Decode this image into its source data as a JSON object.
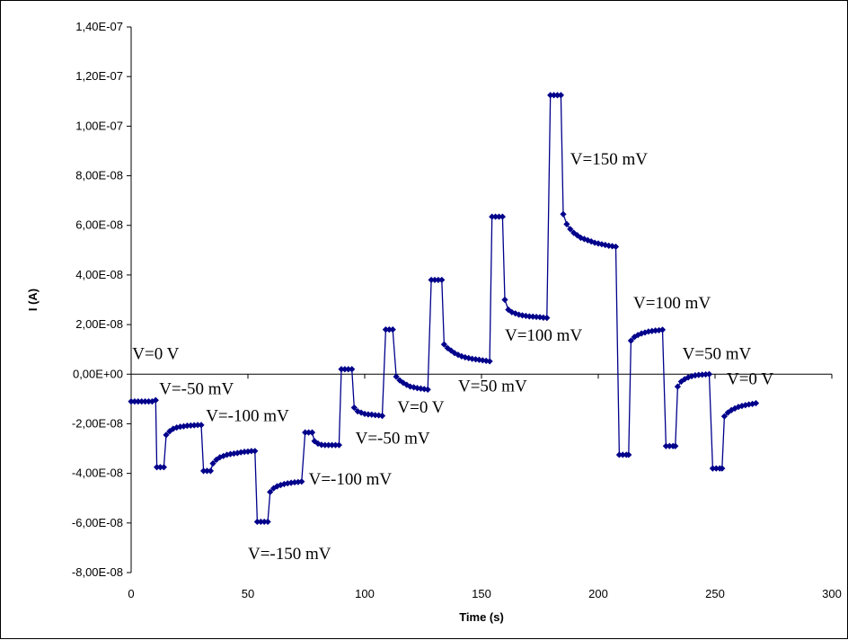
{
  "chart_data": {
    "type": "line",
    "xlabel": "Time (s)",
    "ylabel": "I (A)",
    "xlim": [
      0,
      300
    ],
    "ylim": [
      -8e-08,
      1.4e-07
    ],
    "x_ticks": [
      0,
      50,
      100,
      150,
      200,
      250,
      300
    ],
    "x_tick_labels": [
      "0",
      "50",
      "100",
      "150",
      "200",
      "250",
      "300"
    ],
    "y_ticks": [
      -8e-08,
      -6e-08,
      -4e-08,
      -2e-08,
      0,
      2e-08,
      4e-08,
      6e-08,
      8e-08,
      1e-07,
      1.2e-07,
      1.4e-07
    ],
    "y_tick_labels": [
      "-8,00E-08",
      "-6,00E-08",
      "-4,00E-08",
      "-2,00E-08",
      "0,00E+00",
      "2,00E-08",
      "4,00E-08",
      "6,00E-08",
      "8,00E-08",
      "1,00E-07",
      "1,20E-07",
      "1,40E-07"
    ],
    "grid": false,
    "series_color": "#00008B",
    "marker": "diamond",
    "points": [
      [
        0,
        -1.1e-08
      ],
      [
        1.5,
        -1.1e-08
      ],
      [
        3,
        -1.1e-08
      ],
      [
        4.5,
        -1.1e-08
      ],
      [
        6,
        -1.1e-08
      ],
      [
        7.5,
        -1.1e-08
      ],
      [
        9,
        -1.1e-08
      ],
      [
        10.5,
        -1.05e-08
      ],
      [
        11,
        -3.75e-08
      ],
      [
        12.5,
        -3.75e-08
      ],
      [
        14,
        -3.75e-08
      ],
      [
        15,
        -2.45e-08
      ],
      [
        16.5,
        -2.3e-08
      ],
      [
        18,
        -2.2e-08
      ],
      [
        19.5,
        -2.15e-08
      ],
      [
        21,
        -2.12e-08
      ],
      [
        22.5,
        -2.1e-08
      ],
      [
        24,
        -2.08e-08
      ],
      [
        25.5,
        -2.07e-08
      ],
      [
        27,
        -2.06e-08
      ],
      [
        28.5,
        -2.05e-08
      ],
      [
        30,
        -2.05e-08
      ],
      [
        31,
        -3.9e-08
      ],
      [
        32.5,
        -3.9e-08
      ],
      [
        34,
        -3.9e-08
      ],
      [
        35,
        -3.6e-08
      ],
      [
        36.5,
        -3.45e-08
      ],
      [
        38,
        -3.35e-08
      ],
      [
        39.5,
        -3.3e-08
      ],
      [
        41,
        -3.25e-08
      ],
      [
        42.5,
        -3.22e-08
      ],
      [
        44,
        -3.2e-08
      ],
      [
        45.5,
        -3.18e-08
      ],
      [
        47,
        -3.15e-08
      ],
      [
        48.5,
        -3.13e-08
      ],
      [
        50,
        -3.12e-08
      ],
      [
        51.5,
        -3.1e-08
      ],
      [
        53,
        -3.1e-08
      ],
      [
        54,
        -5.95e-08
      ],
      [
        55.5,
        -5.95e-08
      ],
      [
        57,
        -5.95e-08
      ],
      [
        58.5,
        -5.95e-08
      ],
      [
        59.5,
        -4.75e-08
      ],
      [
        61,
        -4.6e-08
      ],
      [
        62.5,
        -4.52e-08
      ],
      [
        64,
        -4.47e-08
      ],
      [
        65.5,
        -4.43e-08
      ],
      [
        67,
        -4.4e-08
      ],
      [
        68.5,
        -4.38e-08
      ],
      [
        70,
        -4.36e-08
      ],
      [
        71.5,
        -4.35e-08
      ],
      [
        73,
        -4.33e-08
      ],
      [
        74.5,
        -2.35e-08
      ],
      [
        76,
        -2.35e-08
      ],
      [
        77.5,
        -2.35e-08
      ],
      [
        78.5,
        -2.7e-08
      ],
      [
        80,
        -2.8e-08
      ],
      [
        81.5,
        -2.85e-08
      ],
      [
        83,
        -2.86e-08
      ],
      [
        84.5,
        -2.86e-08
      ],
      [
        86,
        -2.86e-08
      ],
      [
        87.5,
        -2.86e-08
      ],
      [
        89,
        -2.86e-08
      ],
      [
        90,
        2e-09
      ],
      [
        91.5,
        2e-09
      ],
      [
        93,
        2e-09
      ],
      [
        94.5,
        2e-09
      ],
      [
        95.5,
        -1.35e-08
      ],
      [
        97,
        -1.5e-08
      ],
      [
        98.5,
        -1.55e-08
      ],
      [
        100,
        -1.6e-08
      ],
      [
        101.5,
        -1.62e-08
      ],
      [
        103,
        -1.63e-08
      ],
      [
        104.5,
        -1.65e-08
      ],
      [
        106,
        -1.66e-08
      ],
      [
        107.5,
        -1.68e-08
      ],
      [
        109,
        1.8e-08
      ],
      [
        110.5,
        1.8e-08
      ],
      [
        112,
        1.8e-08
      ],
      [
        113.5,
        -1e-09
      ],
      [
        115,
        -2.5e-09
      ],
      [
        116.5,
        -3.5e-09
      ],
      [
        118,
        -4.3e-09
      ],
      [
        119.5,
        -5e-09
      ],
      [
        121,
        -5.3e-09
      ],
      [
        122.5,
        -5.6e-09
      ],
      [
        124,
        -5.8e-09
      ],
      [
        125.5,
        -6e-09
      ],
      [
        127,
        -6.2e-09
      ],
      [
        128.5,
        3.8e-08
      ],
      [
        130,
        3.8e-08
      ],
      [
        131.5,
        3.8e-08
      ],
      [
        133,
        3.8e-08
      ],
      [
        134,
        1.2e-08
      ],
      [
        135.5,
        1.05e-08
      ],
      [
        137,
        9.5e-09
      ],
      [
        138.5,
        8.5e-09
      ],
      [
        140,
        7.8e-09
      ],
      [
        141.5,
        7.2e-09
      ],
      [
        143,
        6.8e-09
      ],
      [
        144.5,
        6.5e-09
      ],
      [
        146,
        6.2e-09
      ],
      [
        147.5,
        6e-09
      ],
      [
        149,
        5.8e-09
      ],
      [
        150.5,
        5.6e-09
      ],
      [
        152,
        5.4e-09
      ],
      [
        153.5,
        5.2e-09
      ],
      [
        154.5,
        6.35e-08
      ],
      [
        156,
        6.35e-08
      ],
      [
        157.5,
        6.35e-08
      ],
      [
        159,
        6.35e-08
      ],
      [
        160,
        3e-08
      ],
      [
        161.5,
        2.6e-08
      ],
      [
        163,
        2.5e-08
      ],
      [
        164.5,
        2.45e-08
      ],
      [
        166,
        2.4e-08
      ],
      [
        167.5,
        2.37e-08
      ],
      [
        169,
        2.35e-08
      ],
      [
        170.5,
        2.33e-08
      ],
      [
        172,
        2.32e-08
      ],
      [
        173.5,
        2.31e-08
      ],
      [
        175,
        2.3e-08
      ],
      [
        176.5,
        2.28e-08
      ],
      [
        178,
        2.27e-08
      ],
      [
        179.5,
        1.125e-07
      ],
      [
        181,
        1.125e-07
      ],
      [
        182.5,
        1.125e-07
      ],
      [
        184,
        1.125e-07
      ],
      [
        185,
        6.45e-08
      ],
      [
        186.5,
        6.05e-08
      ],
      [
        188,
        5.85e-08
      ],
      [
        189.5,
        5.7e-08
      ],
      [
        191,
        5.6e-08
      ],
      [
        192.5,
        5.5e-08
      ],
      [
        194,
        5.45e-08
      ],
      [
        195.5,
        5.4e-08
      ],
      [
        197,
        5.35e-08
      ],
      [
        198.5,
        5.3e-08
      ],
      [
        200,
        5.27e-08
      ],
      [
        201.5,
        5.24e-08
      ],
      [
        203,
        5.21e-08
      ],
      [
        204.5,
        5.18e-08
      ],
      [
        206,
        5.16e-08
      ],
      [
        207.5,
        5.14e-08
      ],
      [
        209,
        -3.25e-08
      ],
      [
        210.5,
        -3.25e-08
      ],
      [
        212,
        -3.25e-08
      ],
      [
        213,
        -3.25e-08
      ],
      [
        214,
        1.35e-08
      ],
      [
        215.5,
        1.5e-08
      ],
      [
        217,
        1.58e-08
      ],
      [
        218.5,
        1.64e-08
      ],
      [
        220,
        1.68e-08
      ],
      [
        221.5,
        1.72e-08
      ],
      [
        223,
        1.74e-08
      ],
      [
        224.5,
        1.76e-08
      ],
      [
        226,
        1.77e-08
      ],
      [
        227.5,
        1.79e-08
      ],
      [
        229,
        -2.9e-08
      ],
      [
        230.5,
        -2.9e-08
      ],
      [
        232,
        -2.9e-08
      ],
      [
        233,
        -2.9e-08
      ],
      [
        234,
        -5e-09
      ],
      [
        235.5,
        -3e-09
      ],
      [
        237,
        -2e-09
      ],
      [
        238.5,
        -1.3e-09
      ],
      [
        240,
        -8e-10
      ],
      [
        241.5,
        -5e-10
      ],
      [
        243,
        -3e-10
      ],
      [
        244.5,
        -2e-10
      ],
      [
        246,
        -1e-10
      ],
      [
        247.5,
        0
      ],
      [
        249,
        -3.8e-08
      ],
      [
        250.5,
        -3.8e-08
      ],
      [
        252,
        -3.8e-08
      ],
      [
        253,
        -3.8e-08
      ],
      [
        254,
        -1.7e-08
      ],
      [
        255.5,
        -1.55e-08
      ],
      [
        257,
        -1.45e-08
      ],
      [
        258.5,
        -1.38e-08
      ],
      [
        260,
        -1.32e-08
      ],
      [
        261.5,
        -1.28e-08
      ],
      [
        263,
        -1.25e-08
      ],
      [
        264.5,
        -1.22e-08
      ],
      [
        266,
        -1.2e-08
      ],
      [
        267.5,
        -1.17e-08
      ]
    ],
    "annotations": [
      {
        "text": "V=0 V",
        "x": 0.5,
        "y": 6e-09
      },
      {
        "text": "V=-50 mV",
        "x": 12,
        "y": -8e-09
      },
      {
        "text": "V=-100 mV",
        "x": 32,
        "y": -1.9e-08
      },
      {
        "text": "V=-150 mV",
        "x": 50,
        "y": -7.45e-08
      },
      {
        "text": "V=-100 mV",
        "x": 76,
        "y": -4.45e-08
      },
      {
        "text": "V=-50 mV",
        "x": 96,
        "y": -2.8e-08
      },
      {
        "text": "V=0 V",
        "x": 114,
        "y": -1.55e-08
      },
      {
        "text": "V=50 mV",
        "x": 140,
        "y": -7e-09
      },
      {
        "text": "V=100 mV",
        "x": 160,
        "y": 1.35e-08
      },
      {
        "text": "V=150 mV",
        "x": 188,
        "y": 8.45e-08
      },
      {
        "text": "V=100 mV",
        "x": 215,
        "y": 2.65e-08
      },
      {
        "text": "V=50 mV",
        "x": 236,
        "y": 6e-09
      },
      {
        "text": "V=0 V",
        "x": 255,
        "y": -4e-09
      }
    ]
  }
}
